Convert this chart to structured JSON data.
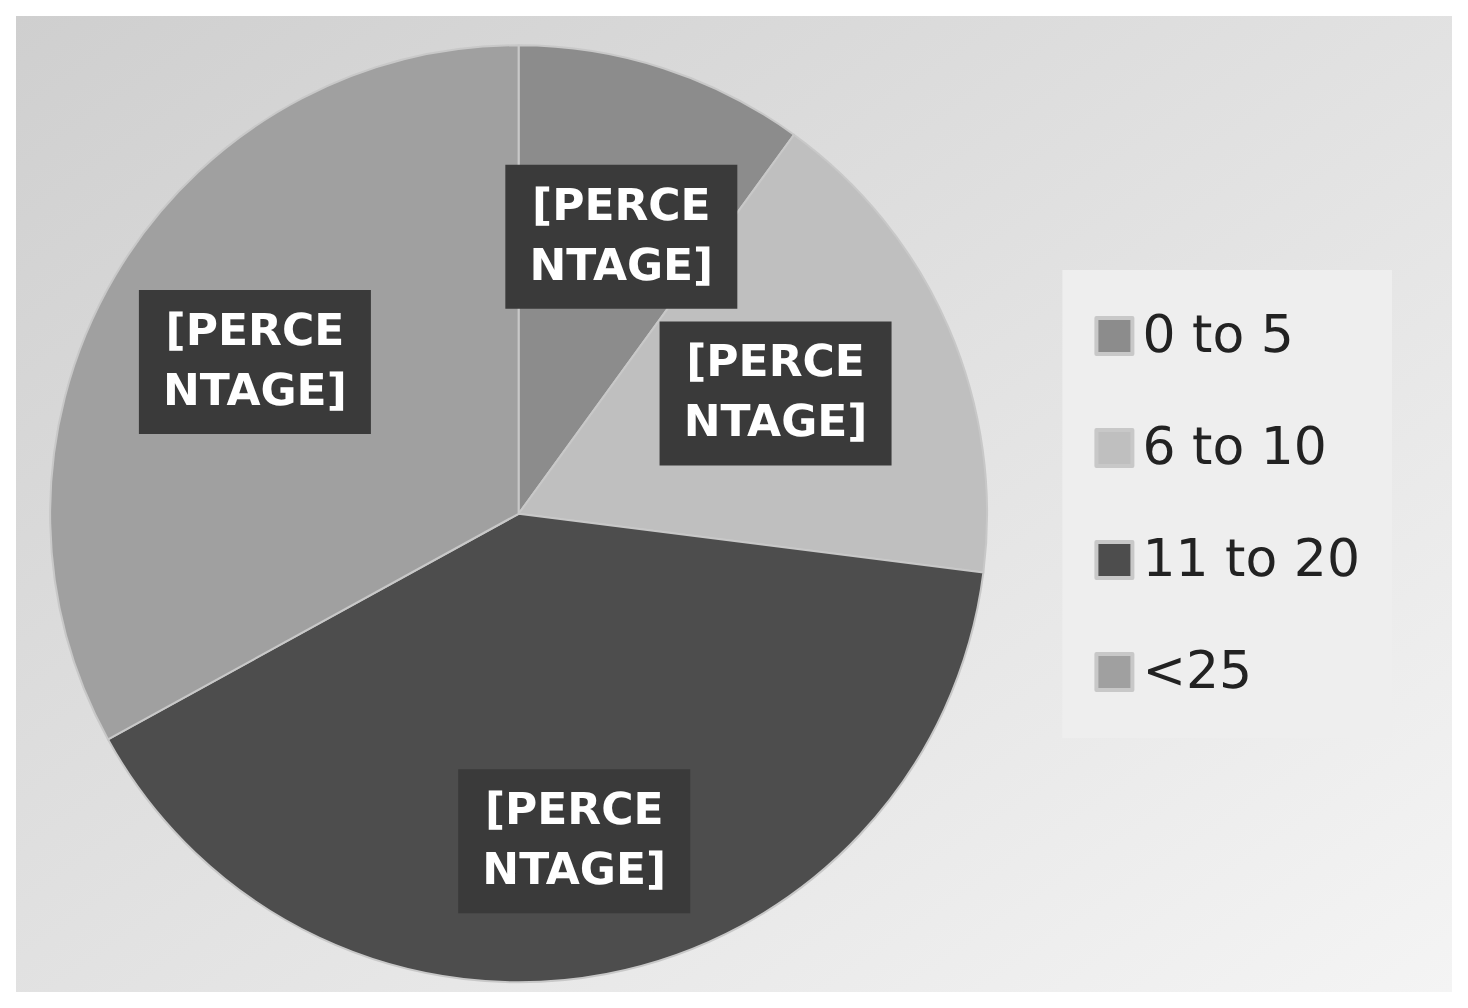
{
  "chart_data": {
    "type": "pie",
    "categories": [
      "0 to 5",
      "6 to 10",
      "11 to 20",
      "<25"
    ],
    "values": [
      10,
      17,
      40,
      33
    ],
    "colors": [
      "#8c8c8c",
      "#bfbfbf",
      "#4d4d4d",
      "#a0a0a0"
    ],
    "value_labels": [
      "[PERCENTAGE]",
      "[PERCENTAGE]",
      "[PERCENTAGE]",
      "[PERCENTAGE]"
    ],
    "legend": "right"
  }
}
